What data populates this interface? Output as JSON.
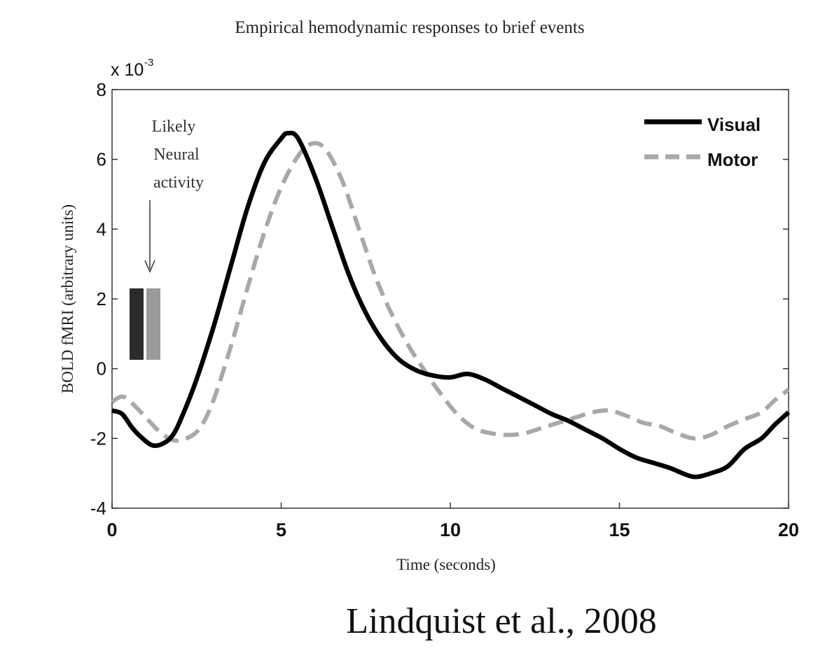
{
  "chart_data": {
    "type": "line",
    "title": "Empirical hemodynamic responses to brief events",
    "xlabel": "Time (seconds)",
    "ylabel": "BOLD fMRI (arbitrary units)",
    "y_multiplier_label": "x 10",
    "y_multiplier_exponent": "-3",
    "xlim": [
      0,
      20
    ],
    "ylim": [
      -4,
      8
    ],
    "x_ticks": [
      0,
      5,
      10,
      15,
      20
    ],
    "x_tick_labels": [
      "0",
      "5",
      "10",
      "15",
      "20"
    ],
    "y_ticks": [
      -4,
      -2,
      0,
      2,
      4,
      6,
      8
    ],
    "y_tick_labels": [
      "-4",
      "-2",
      "0",
      "2",
      "4",
      "6",
      "8"
    ],
    "grid": false,
    "legend_position": "top-right",
    "series": [
      {
        "name": "Visual",
        "style": "solid",
        "color": "#000000",
        "points": [
          [
            0.0,
            -1.2
          ],
          [
            0.3,
            -1.3
          ],
          [
            0.6,
            -1.7
          ],
          [
            0.9,
            -2.0
          ],
          [
            1.2,
            -2.2
          ],
          [
            1.5,
            -2.15
          ],
          [
            1.8,
            -1.9
          ],
          [
            2.1,
            -1.3
          ],
          [
            2.5,
            -0.3
          ],
          [
            3.0,
            1.2
          ],
          [
            3.5,
            2.9
          ],
          [
            4.0,
            4.6
          ],
          [
            4.5,
            5.9
          ],
          [
            5.0,
            6.6
          ],
          [
            5.2,
            6.75
          ],
          [
            5.5,
            6.6
          ],
          [
            6.0,
            5.5
          ],
          [
            6.5,
            4.1
          ],
          [
            7.0,
            2.7
          ],
          [
            7.5,
            1.6
          ],
          [
            8.0,
            0.8
          ],
          [
            8.5,
            0.25
          ],
          [
            9.0,
            -0.05
          ],
          [
            9.5,
            -0.2
          ],
          [
            10.0,
            -0.25
          ],
          [
            10.5,
            -0.15
          ],
          [
            11.0,
            -0.3
          ],
          [
            11.5,
            -0.55
          ],
          [
            12.0,
            -0.8
          ],
          [
            12.5,
            -1.05
          ],
          [
            13.0,
            -1.3
          ],
          [
            13.5,
            -1.5
          ],
          [
            14.0,
            -1.75
          ],
          [
            14.5,
            -2.0
          ],
          [
            15.0,
            -2.3
          ],
          [
            15.5,
            -2.55
          ],
          [
            16.0,
            -2.7
          ],
          [
            16.5,
            -2.85
          ],
          [
            17.0,
            -3.05
          ],
          [
            17.3,
            -3.1
          ],
          [
            17.7,
            -3.0
          ],
          [
            18.2,
            -2.8
          ],
          [
            18.7,
            -2.3
          ],
          [
            19.2,
            -2.0
          ],
          [
            19.6,
            -1.6
          ],
          [
            20.0,
            -1.25
          ]
        ]
      },
      {
        "name": "Motor",
        "style": "dashed",
        "color": "#a8a8a8",
        "points": [
          [
            0.0,
            -0.95
          ],
          [
            0.3,
            -0.8
          ],
          [
            0.6,
            -1.0
          ],
          [
            1.0,
            -1.4
          ],
          [
            1.4,
            -1.8
          ],
          [
            1.8,
            -2.05
          ],
          [
            2.2,
            -2.0
          ],
          [
            2.6,
            -1.7
          ],
          [
            3.0,
            -0.9
          ],
          [
            3.5,
            0.6
          ],
          [
            4.0,
            2.3
          ],
          [
            4.5,
            3.9
          ],
          [
            5.0,
            5.2
          ],
          [
            5.5,
            6.1
          ],
          [
            5.9,
            6.45
          ],
          [
            6.3,
            6.3
          ],
          [
            6.8,
            5.4
          ],
          [
            7.3,
            4.0
          ],
          [
            7.8,
            2.6
          ],
          [
            8.3,
            1.5
          ],
          [
            8.8,
            0.6
          ],
          [
            9.2,
            0.0
          ],
          [
            9.7,
            -0.7
          ],
          [
            10.2,
            -1.3
          ],
          [
            10.7,
            -1.7
          ],
          [
            11.2,
            -1.85
          ],
          [
            11.7,
            -1.9
          ],
          [
            12.2,
            -1.85
          ],
          [
            12.7,
            -1.7
          ],
          [
            13.2,
            -1.55
          ],
          [
            13.7,
            -1.4
          ],
          [
            14.2,
            -1.25
          ],
          [
            14.7,
            -1.2
          ],
          [
            15.2,
            -1.35
          ],
          [
            15.7,
            -1.55
          ],
          [
            16.2,
            -1.65
          ],
          [
            16.7,
            -1.85
          ],
          [
            17.2,
            -2.0
          ],
          [
            17.7,
            -1.9
          ],
          [
            18.2,
            -1.65
          ],
          [
            18.7,
            -1.45
          ],
          [
            19.2,
            -1.25
          ],
          [
            19.6,
            -0.9
          ],
          [
            20.0,
            -0.6
          ]
        ]
      }
    ],
    "annotations": {
      "neural_activity_label": [
        "Likely",
        "Neural",
        "activity"
      ],
      "bars": [
        {
          "color": "#2b2b2b"
        },
        {
          "color": "#9a9a9a"
        }
      ]
    }
  },
  "citation": "Lindquist et al., 2008"
}
